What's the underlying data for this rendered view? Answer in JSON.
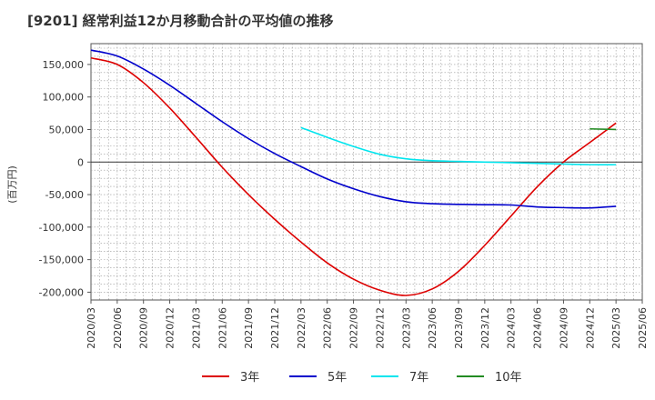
{
  "title": "[9201]  経常利益12か月移動合計の平均値の推移",
  "chart_data": {
    "type": "line",
    "title": "[9201]  経常利益12か月移動合計の平均値の推移",
    "ylabel": "(百万円)",
    "xlabel": "",
    "ylim": [
      -212000,
      182000
    ],
    "y_ticks": [
      150000,
      100000,
      50000,
      0,
      -50000,
      -100000,
      -150000,
      -200000
    ],
    "y_tick_labels": [
      "150,000",
      "100,000",
      "50,000",
      "0",
      "-50,000",
      "-100,000",
      "-150,000",
      "-200,000"
    ],
    "x_tick_labels": [
      "2020/03",
      "2020/06",
      "2020/09",
      "2020/12",
      "2021/03",
      "2021/06",
      "2021/09",
      "2021/12",
      "2022/03",
      "2022/06",
      "2022/09",
      "2022/12",
      "2023/03",
      "2023/06",
      "2023/09",
      "2023/12",
      "2024/03",
      "2024/06",
      "2024/09",
      "2024/12",
      "2025/03",
      "2025/06"
    ],
    "grid": true,
    "legend_position": "bottom",
    "series": [
      {
        "name": "3年",
        "color": "#dd0000",
        "points": [
          [
            "2020/03",
            160000
          ],
          [
            "2020/06",
            150000
          ],
          [
            "2020/09",
            122000
          ],
          [
            "2020/12",
            83000
          ],
          [
            "2021/03",
            38000
          ],
          [
            "2021/06",
            -8000
          ],
          [
            "2021/09",
            -50000
          ],
          [
            "2021/12",
            -88000
          ],
          [
            "2022/03",
            -123000
          ],
          [
            "2022/06",
            -155000
          ],
          [
            "2022/09",
            -180000
          ],
          [
            "2022/12",
            -197000
          ],
          [
            "2023/03",
            -205000
          ],
          [
            "2023/06",
            -195000
          ],
          [
            "2023/09",
            -168000
          ],
          [
            "2023/12",
            -128000
          ],
          [
            "2024/03",
            -83000
          ],
          [
            "2024/06",
            -38000
          ],
          [
            "2024/09",
            0
          ],
          [
            "2024/12",
            30000
          ],
          [
            "2025/03",
            60000
          ]
        ]
      },
      {
        "name": "5年",
        "color": "#0000cc",
        "points": [
          [
            "2020/03",
            172000
          ],
          [
            "2020/06",
            163000
          ],
          [
            "2020/09",
            143000
          ],
          [
            "2020/12",
            118000
          ],
          [
            "2021/03",
            90000
          ],
          [
            "2021/06",
            62000
          ],
          [
            "2021/09",
            36000
          ],
          [
            "2021/12",
            13000
          ],
          [
            "2022/03",
            -7000
          ],
          [
            "2022/06",
            -26000
          ],
          [
            "2022/09",
            -41000
          ],
          [
            "2022/12",
            -53000
          ],
          [
            "2023/03",
            -61000
          ],
          [
            "2023/06",
            -64000
          ],
          [
            "2023/09",
            -65000
          ],
          [
            "2023/12",
            -65500
          ],
          [
            "2024/03",
            -66000
          ],
          [
            "2024/06",
            -69000
          ],
          [
            "2024/09",
            -70000
          ],
          [
            "2024/12",
            -70500
          ],
          [
            "2025/03",
            -68000
          ]
        ]
      },
      {
        "name": "7年",
        "color": "#00e5ee",
        "points": [
          [
            "2022/03",
            53000
          ],
          [
            "2022/06",
            38000
          ],
          [
            "2022/09",
            24000
          ],
          [
            "2022/12",
            12000
          ],
          [
            "2023/03",
            5000
          ],
          [
            "2023/06",
            2000
          ],
          [
            "2023/09",
            1000
          ],
          [
            "2023/12",
            0
          ],
          [
            "2024/03",
            -1000
          ],
          [
            "2024/06",
            -2000
          ],
          [
            "2024/09",
            -3000
          ],
          [
            "2024/12",
            -4000
          ],
          [
            "2025/03",
            -4000
          ]
        ]
      },
      {
        "name": "10年",
        "color": "#228b22",
        "points": [
          [
            "2024/12",
            51000
          ],
          [
            "2025/03",
            50000
          ]
        ]
      }
    ]
  }
}
